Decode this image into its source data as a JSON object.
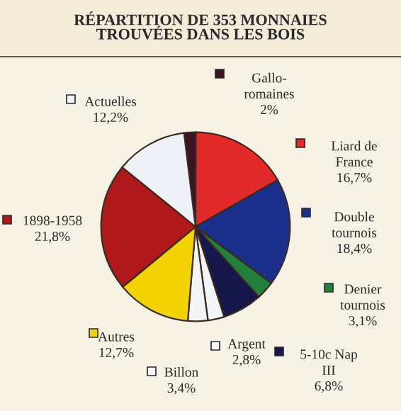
{
  "chart_data": {
    "type": "pie",
    "title": "RÉPARTITION DE 353 MONNAIES\nTROUVÉES DANS LES BOIS",
    "categories": [
      "Gallo-\nromaines",
      "Liard de\nFrance",
      "Double\ntournois",
      "Denier\ntournois",
      "5-10c Nap\nIII",
      "Argent",
      "Billon",
      "Autres",
      "1898-1958",
      "Actuelles"
    ],
    "values": [
      2,
      16.7,
      18.4,
      3.1,
      6.8,
      2.8,
      3.4,
      12.7,
      21.8,
      12.2
    ],
    "value_labels": [
      "2%",
      "16,7%",
      "18,4%",
      "3,1%",
      "6,8%",
      "2,8%",
      "3,4%",
      "12,7%",
      "21,8%",
      "12,2%"
    ],
    "legend": "right",
    "colors": [
      "#3e1424",
      "#e32a2a",
      "#1b2f8c",
      "#23803a",
      "#15164a",
      "#f4f5f6",
      "#f4f5f6",
      "#f2d200",
      "#b0181c",
      "#eef1f5"
    ]
  }
}
